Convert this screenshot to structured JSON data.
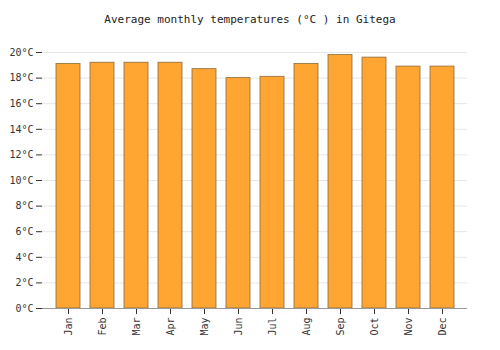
{
  "chart_data": {
    "type": "bar",
    "title": "Average monthly temperatures (°C ) in Gitega",
    "categories": [
      "Jan",
      "Feb",
      "Mar",
      "Apr",
      "May",
      "Jun",
      "Jul",
      "Aug",
      "Sep",
      "Oct",
      "Nov",
      "Dec"
    ],
    "values": [
      19.1,
      19.2,
      19.2,
      19.2,
      18.7,
      18.0,
      18.1,
      19.1,
      19.8,
      19.6,
      18.9,
      18.9
    ],
    "color": "#ffa532",
    "ylim": [
      0,
      20
    ],
    "yticks": [
      {
        "value": 0,
        "label": "0°C"
      },
      {
        "value": 2,
        "label": "2°C"
      },
      {
        "value": 4,
        "label": "4°C"
      },
      {
        "value": 6,
        "label": "6°C"
      },
      {
        "value": 8,
        "label": "8°C"
      },
      {
        "value": 10,
        "label": "10°C"
      },
      {
        "value": 12,
        "label": "12°C"
      },
      {
        "value": 14,
        "label": "14°C"
      },
      {
        "value": 16,
        "label": "16°C"
      },
      {
        "value": 18,
        "label": "18°C"
      },
      {
        "value": 20,
        "label": "20°C"
      }
    ],
    "grid": true
  }
}
